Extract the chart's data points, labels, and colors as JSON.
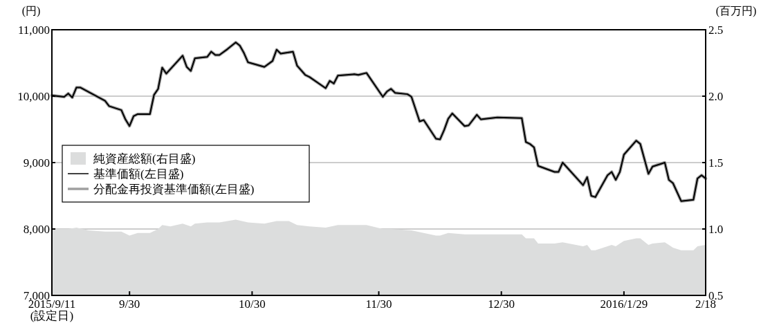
{
  "chart_data": {
    "type": "line",
    "ylabel": "(円)",
    "y2label": "(百万円)",
    "xlim": [
      "2015-09-11",
      "2016-02-18"
    ],
    "xticks": [
      {
        "value": "2015-09-11",
        "label": "2015/9/11\n(設定日)"
      },
      {
        "value": "2015-09-30",
        "label": "9/30"
      },
      {
        "value": "2015-10-30",
        "label": "10/30"
      },
      {
        "value": "2015-11-30",
        "label": "11/30"
      },
      {
        "value": "2015-12-30",
        "label": "12/30"
      },
      {
        "value": "2016-01-29",
        "label": "2016/1/29"
      },
      {
        "value": "2016-02-18",
        "label": "2/18"
      }
    ],
    "ylim": [
      7000,
      11000
    ],
    "yticks": [
      {
        "value": 7000,
        "label": "7,000"
      },
      {
        "value": 8000,
        "label": "8,000"
      },
      {
        "value": 9000,
        "label": "9,000"
      },
      {
        "value": 10000,
        "label": "10,000"
      },
      {
        "value": 11000,
        "label": "11,000"
      }
    ],
    "y2lim": [
      0.5,
      2.5
    ],
    "y2ticks": [
      0.5,
      {
        "value": 1,
        "label": "1.0"
      },
      1.5,
      {
        "value": 2,
        "label": "2.0"
      },
      2.5
    ],
    "grid": "y",
    "legend": "left",
    "series": [
      {
        "name": "純資産総額(右目盛)",
        "type": "area",
        "axis": "y2",
        "color": "#dcdddd",
        "x": [
          "2015-09-11",
          "2015-09-15",
          "2015-09-17",
          "2015-09-20",
          "2015-09-24",
          "2015-09-28",
          "2015-09-30",
          "2015-10-02",
          "2015-10-05",
          "2015-10-07",
          "2015-10-08",
          "2015-10-10",
          "2015-10-13",
          "2015-10-15",
          "2015-10-16",
          "2015-10-19",
          "2015-10-22",
          "2015-10-26",
          "2015-10-29",
          "2015-11-02",
          "2015-11-05",
          "2015-11-08",
          "2015-11-10",
          "2015-11-13",
          "2015-11-17",
          "2015-11-20",
          "2015-11-27",
          "2015-12-01",
          "2015-12-03",
          "2015-12-08",
          "2015-12-11",
          "2015-12-14",
          "2015-12-15",
          "2015-12-17",
          "2015-12-21",
          "2015-12-24",
          "2016-01-04",
          "2016-01-05",
          "2016-01-07",
          "2016-01-08",
          "2016-01-12",
          "2016-01-14",
          "2016-01-19",
          "2016-01-20",
          "2016-01-21",
          "2016-01-22",
          "2016-01-26",
          "2016-01-27",
          "2016-01-28",
          "2016-01-29",
          "2016-02-01",
          "2016-02-02",
          "2016-02-04",
          "2016-02-05",
          "2016-02-08",
          "2016-02-09",
          "2016-02-10",
          "2016-02-12",
          "2016-02-15",
          "2016-02-16",
          "2016-02-18"
        ],
        "values": [
          1.0,
          1.0,
          1.01,
          0.99,
          0.98,
          0.98,
          0.95,
          0.97,
          0.97,
          1.0,
          1.03,
          1.02,
          1.04,
          1.02,
          1.04,
          1.05,
          1.05,
          1.07,
          1.05,
          1.04,
          1.06,
          1.06,
          1.03,
          1.02,
          1.01,
          1.03,
          1.03,
          1.0,
          1.0,
          0.99,
          0.97,
          0.95,
          0.95,
          0.97,
          0.96,
          0.96,
          0.96,
          0.93,
          0.93,
          0.89,
          0.89,
          0.9,
          0.87,
          0.88,
          0.84,
          0.84,
          0.88,
          0.87,
          0.89,
          0.91,
          0.93,
          0.93,
          0.88,
          0.89,
          0.9,
          0.88,
          0.86,
          0.84,
          0.84,
          0.87,
          0.88
        ]
      },
      {
        "name": "分配金再投資基準価額(左目盛)",
        "color": "#a0a0a0",
        "x": [
          "2015-09-11",
          "2015-09-14",
          "2015-09-15",
          "2015-09-16",
          "2015-09-17",
          "2015-09-18",
          "2015-09-24",
          "2015-09-25",
          "2015-09-28",
          "2015-09-29",
          "2015-09-30",
          "2015-10-01",
          "2015-10-02",
          "2015-10-05",
          "2015-10-06",
          "2015-10-07",
          "2015-10-08",
          "2015-10-09",
          "2015-10-13",
          "2015-10-14",
          "2015-10-15",
          "2015-10-16",
          "2015-10-19",
          "2015-10-20",
          "2015-10-21",
          "2015-10-22",
          "2015-10-24",
          "2015-10-26",
          "2015-10-27",
          "2015-10-28",
          "2015-10-29",
          "2015-11-02",
          "2015-11-04",
          "2015-11-05",
          "2015-11-06",
          "2015-11-09",
          "2015-11-10",
          "2015-11-12",
          "2015-11-13",
          "2015-11-17",
          "2015-11-18",
          "2015-11-19",
          "2015-11-20",
          "2015-11-24",
          "2015-11-25",
          "2015-11-27",
          "2015-12-01",
          "2015-12-02",
          "2015-12-03",
          "2015-12-04",
          "2015-12-07",
          "2015-12-08",
          "2015-12-10",
          "2015-12-11",
          "2015-12-14",
          "2015-12-15",
          "2015-12-16",
          "2015-12-17",
          "2015-12-18",
          "2015-12-21",
          "2015-12-22",
          "2015-12-24",
          "2015-12-25",
          "2015-12-29",
          "2016-01-04",
          "2016-01-05",
          "2016-01-06",
          "2016-01-07",
          "2016-01-08",
          "2016-01-12",
          "2016-01-13",
          "2016-01-14",
          "2016-01-19",
          "2016-01-20",
          "2016-01-21",
          "2016-01-22",
          "2016-01-25",
          "2016-01-26",
          "2016-01-27",
          "2016-01-28",
          "2016-01-29",
          "2016-02-01",
          "2016-02-02",
          "2016-02-04",
          "2016-02-05",
          "2016-02-08",
          "2016-02-09",
          "2016-02-10",
          "2016-02-12",
          "2016-02-15",
          "2016-02-16",
          "2016-02-17",
          "2016-02-18"
        ],
        "values": [
          10010,
          9990,
          10040,
          9980,
          10130,
          10130,
          9930,
          9850,
          9790,
          9650,
          9550,
          9700,
          9730,
          9730,
          10020,
          10110,
          10430,
          10340,
          10610,
          10440,
          10380,
          10570,
          10590,
          10670,
          10620,
          10620,
          10710,
          10810,
          10760,
          10650,
          10510,
          10440,
          10530,
          10700,
          10640,
          10670,
          10460,
          10320,
          10290,
          10120,
          10230,
          10190,
          10310,
          10330,
          10320,
          10350,
          9990,
          10070,
          10110,
          10050,
          10030,
          9990,
          9620,
          9640,
          9360,
          9350,
          9490,
          9660,
          9740,
          9550,
          9560,
          9720,
          9650,
          9680,
          9670,
          9310,
          9280,
          9230,
          8950,
          8860,
          8860,
          9000,
          8660,
          8780,
          8500,
          8480,
          8810,
          8860,
          8740,
          8860,
          9120,
          9330,
          9280,
          8830,
          8940,
          9000,
          8740,
          8690,
          8420,
          8440,
          8760,
          8810,
          8760
        ]
      },
      {
        "name": "基準価額(左目盛)",
        "color": "#000000",
        "x": [
          "2015-09-11",
          "2015-09-14",
          "2015-09-15",
          "2015-09-16",
          "2015-09-17",
          "2015-09-18",
          "2015-09-24",
          "2015-09-25",
          "2015-09-28",
          "2015-09-29",
          "2015-09-30",
          "2015-10-01",
          "2015-10-02",
          "2015-10-05",
          "2015-10-06",
          "2015-10-07",
          "2015-10-08",
          "2015-10-09",
          "2015-10-13",
          "2015-10-14",
          "2015-10-15",
          "2015-10-16",
          "2015-10-19",
          "2015-10-20",
          "2015-10-21",
          "2015-10-22",
          "2015-10-24",
          "2015-10-26",
          "2015-10-27",
          "2015-10-28",
          "2015-10-29",
          "2015-11-02",
          "2015-11-04",
          "2015-11-05",
          "2015-11-06",
          "2015-11-09",
          "2015-11-10",
          "2015-11-12",
          "2015-11-13",
          "2015-11-17",
          "2015-11-18",
          "2015-11-19",
          "2015-11-20",
          "2015-11-24",
          "2015-11-25",
          "2015-11-27",
          "2015-12-01",
          "2015-12-02",
          "2015-12-03",
          "2015-12-04",
          "2015-12-07",
          "2015-12-08",
          "2015-12-10",
          "2015-12-11",
          "2015-12-14",
          "2015-12-15",
          "2015-12-16",
          "2015-12-17",
          "2015-12-18",
          "2015-12-21",
          "2015-12-22",
          "2015-12-24",
          "2015-12-25",
          "2015-12-29",
          "2016-01-04",
          "2016-01-05",
          "2016-01-06",
          "2016-01-07",
          "2016-01-08",
          "2016-01-12",
          "2016-01-13",
          "2016-01-14",
          "2016-01-19",
          "2016-01-20",
          "2016-01-21",
          "2016-01-22",
          "2016-01-25",
          "2016-01-26",
          "2016-01-27",
          "2016-01-28",
          "2016-01-29",
          "2016-02-01",
          "2016-02-02",
          "2016-02-04",
          "2016-02-05",
          "2016-02-08",
          "2016-02-09",
          "2016-02-10",
          "2016-02-12",
          "2016-02-15",
          "2016-02-16",
          "2016-02-17",
          "2016-02-18"
        ],
        "values": [
          10010,
          9990,
          10040,
          9980,
          10130,
          10130,
          9930,
          9850,
          9790,
          9650,
          9550,
          9700,
          9730,
          9730,
          10020,
          10110,
          10430,
          10340,
          10610,
          10440,
          10380,
          10570,
          10590,
          10670,
          10620,
          10620,
          10710,
          10810,
          10760,
          10650,
          10510,
          10440,
          10530,
          10700,
          10640,
          10670,
          10460,
          10320,
          10290,
          10120,
          10230,
          10190,
          10310,
          10330,
          10320,
          10350,
          9990,
          10070,
          10110,
          10050,
          10030,
          9990,
          9620,
          9640,
          9360,
          9350,
          9490,
          9660,
          9740,
          9550,
          9560,
          9720,
          9650,
          9680,
          9670,
          9310,
          9280,
          9230,
          8950,
          8860,
          8860,
          9000,
          8660,
          8780,
          8500,
          8480,
          8810,
          8860,
          8740,
          8860,
          9120,
          9330,
          9280,
          8830,
          8940,
          9000,
          8740,
          8690,
          8420,
          8440,
          8760,
          8810,
          8760
        ]
      }
    ]
  }
}
